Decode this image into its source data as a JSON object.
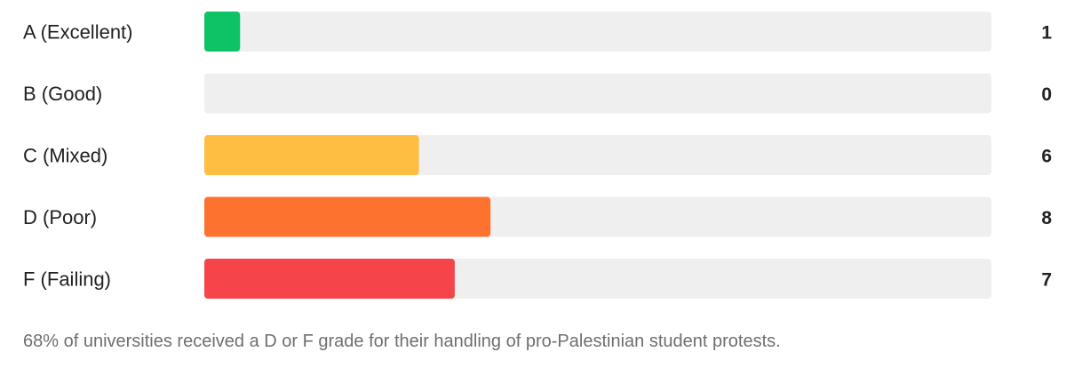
{
  "chart_data": {
    "type": "bar",
    "orientation": "horizontal",
    "categories": [
      "A (Excellent)",
      "B (Good)",
      "C (Mixed)",
      "D (Poor)",
      "F (Failing)"
    ],
    "values": [
      1,
      0,
      6,
      8,
      7
    ],
    "xlim": [
      0,
      22
    ],
    "grid": false,
    "legend": "none",
    "colors": {
      "track": "#efefef",
      "bars": [
        "#0ec266",
        "#efefef",
        "#fdbe41",
        "#fe7230",
        "#f5454a"
      ]
    }
  },
  "footnote": "68% of universities received a D or F grade for their handling of pro-Palestinian student protests."
}
